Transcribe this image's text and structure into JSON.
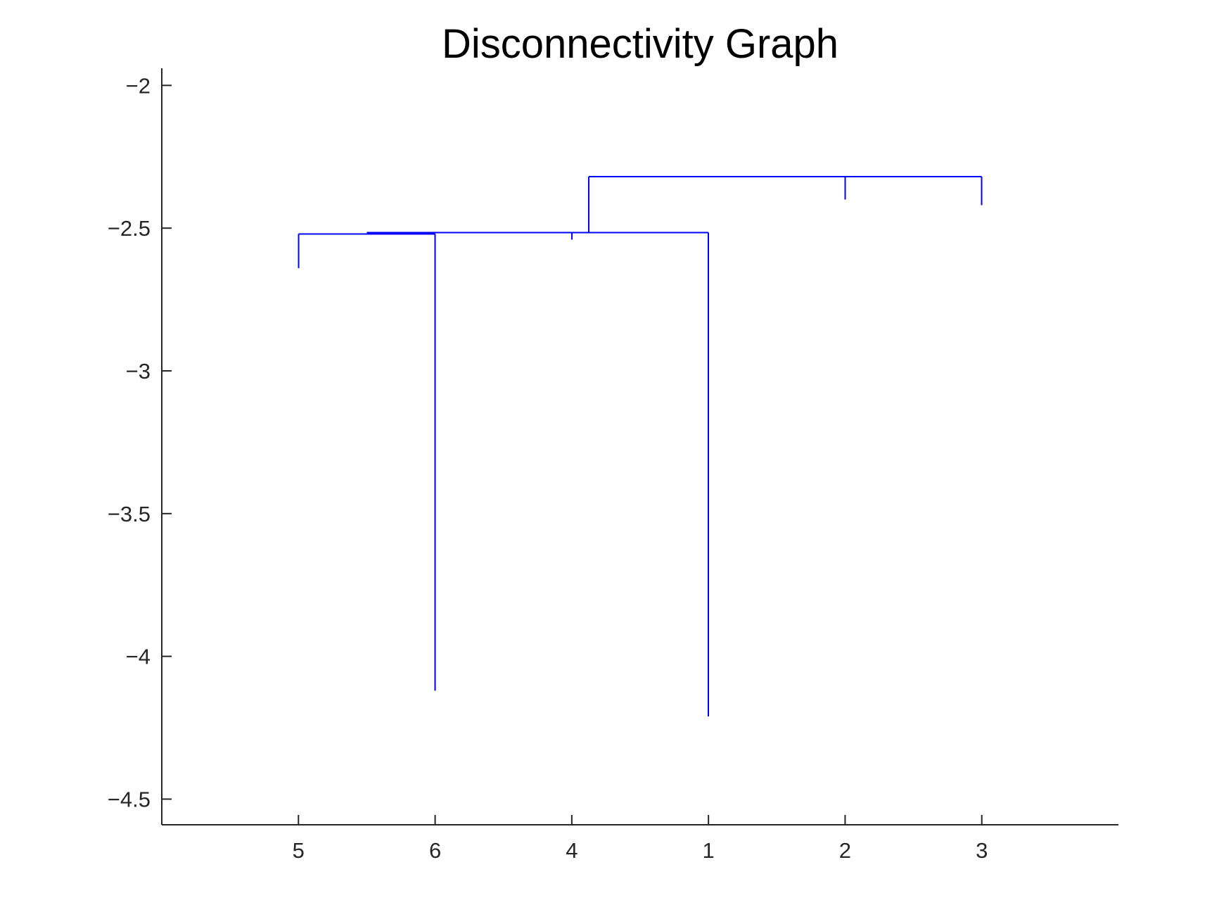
{
  "chart_data": {
    "type": "dendrogram",
    "title": "Disconnectivity Graph",
    "xlabel": "",
    "ylabel": "",
    "ylim": [
      -4.59,
      -1.94
    ],
    "xlim": [
      0,
      7
    ],
    "yticks": [
      -2,
      -2.5,
      -3,
      -3.5,
      -4,
      -4.5
    ],
    "ytick_labels": [
      "−2",
      "−2.5",
      "−3",
      "−3.5",
      "−4",
      "−4.5"
    ],
    "leaf_order": [
      "5",
      "6",
      "4",
      "1",
      "2",
      "3"
    ],
    "leaf_positions": [
      1,
      2,
      3,
      4,
      5,
      6
    ],
    "leaf_minima": [
      -2.64,
      -4.12,
      -2.54,
      -4.21,
      -2.4,
      -2.42
    ],
    "line_color": "#0000ff",
    "segments": [
      {
        "x": [
          1,
          1
        ],
        "y": [
          -2.52,
          -2.64
        ]
      },
      {
        "x": [
          1,
          2
        ],
        "y": [
          -2.52,
          -2.52
        ]
      },
      {
        "x": [
          2,
          2
        ],
        "y": [
          -2.52,
          -4.12
        ]
      },
      {
        "x": [
          1.5,
          4
        ],
        "y": [
          -2.515,
          -2.515
        ]
      },
      {
        "x": [
          3,
          3
        ],
        "y": [
          -2.515,
          -2.54
        ]
      },
      {
        "x": [
          4,
          4
        ],
        "y": [
          -2.515,
          -4.21
        ]
      },
      {
        "x": [
          3.125,
          3.125
        ],
        "y": [
          -2.515,
          -2.32
        ]
      },
      {
        "x": [
          3.125,
          6
        ],
        "y": [
          -2.32,
          -2.32
        ]
      },
      {
        "x": [
          5,
          5
        ],
        "y": [
          -2.32,
          -2.4
        ]
      },
      {
        "x": [
          6,
          6
        ],
        "y": [
          -2.32,
          -2.42
        ]
      }
    ]
  }
}
